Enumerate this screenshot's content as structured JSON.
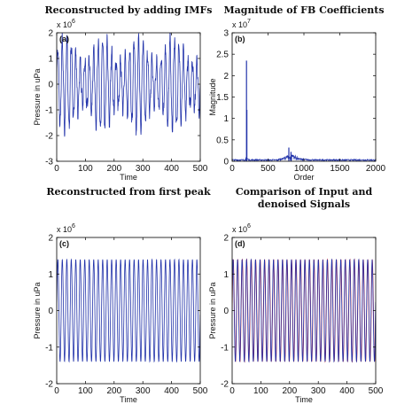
{
  "chart_data": [
    {
      "type": "line",
      "panel_label": "(a)",
      "title": "Reconstructed by adding IMFs",
      "xlabel": "Time",
      "ylabel": "Pressure in uPa",
      "exponent_base": "x 10",
      "exponent_power": "6",
      "xlim": [
        0,
        500
      ],
      "ylim": [
        -3,
        2
      ],
      "xticks": [
        "0",
        "100",
        "200",
        "300",
        "400",
        "500"
      ],
      "yticks": [
        "-3",
        "-2",
        "-1",
        "0",
        "1",
        "2"
      ],
      "series": [
        {
          "amplitude": 1.55,
          "cycles_per_100": 6.4,
          "noise": 0.35,
          "color": "#2233aa"
        }
      ]
    },
    {
      "type": "line",
      "panel_label": "(b)",
      "title": "Magnitude of FB Coefficients",
      "xlabel": "Order",
      "ylabel": "Magnitude",
      "exponent_base": "x 10",
      "exponent_power": "7",
      "xlim": [
        0,
        2000
      ],
      "ylim": [
        0,
        3
      ],
      "xticks": [
        "0",
        "500",
        "1000",
        "1500",
        "2000"
      ],
      "yticks": [
        "0",
        "0.5",
        "1",
        "1.5",
        "2",
        "2.5",
        "3"
      ],
      "peaks": [
        {
          "x": 200,
          "y": 2.35
        },
        {
          "x": 205,
          "y": 1.2
        },
        {
          "x": 790,
          "y": 0.32
        },
        {
          "x": 820,
          "y": 0.22
        }
      ],
      "series": [
        {
          "color": "#2233aa"
        }
      ]
    },
    {
      "type": "line",
      "panel_label": "(c)",
      "title": "Reconstructed from first peak",
      "xlabel": "Time",
      "ylabel": "Pressure in uPa",
      "exponent_base": "x 10",
      "exponent_power": "6",
      "xlim": [
        0,
        500
      ],
      "ylim": [
        -2,
        2
      ],
      "xticks": [
        "0",
        "100",
        "200",
        "300",
        "400",
        "500"
      ],
      "yticks": [
        "-2",
        "-1",
        "0",
        "1",
        "2"
      ],
      "series": [
        {
          "amplitude": 1.4,
          "cycles_per_100": 6.4,
          "color": "#2233aa"
        }
      ]
    },
    {
      "type": "line",
      "panel_label": "(d)",
      "title": "Comparison of Input and",
      "subtitle": "denoised Signals",
      "xlabel": "Time",
      "ylabel": "Pressure in uPa",
      "exponent_base": "x 10",
      "exponent_power": "6",
      "xlim": [
        0,
        500
      ],
      "ylim": [
        -2,
        2
      ],
      "xticks": [
        "0",
        "100",
        "200",
        "300",
        "400",
        "500"
      ],
      "yticks": [
        "-2",
        "-1",
        "0",
        "1",
        "2"
      ],
      "series": [
        {
          "amplitude": 1.4,
          "cycles_per_100": 6.4,
          "color": "#dd2222"
        },
        {
          "amplitude": 1.4,
          "cycles_per_100": 6.4,
          "color": "#2233aa"
        }
      ]
    }
  ]
}
